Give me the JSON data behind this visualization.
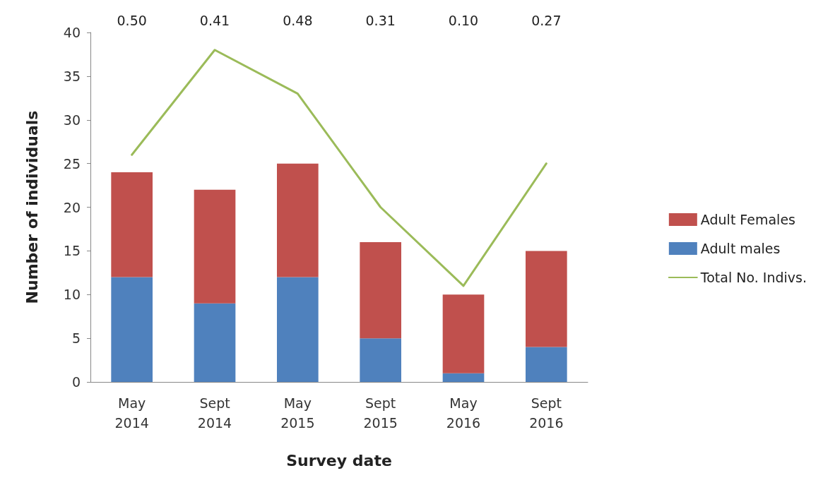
{
  "chart_data": {
    "type": "bar",
    "xlabel": "Survey date",
    "ylabel": "Number of individuals",
    "categories": [
      "May\n2014",
      "Sept\n2014",
      "May\n2015",
      "Sept\n2015",
      "May\n2016",
      "Sept\n2016"
    ],
    "stacked": true,
    "series": [
      {
        "name": "Adult males",
        "color": "#4f81bd",
        "values": [
          12,
          9,
          12,
          5,
          1,
          4
        ]
      },
      {
        "name": "Adult Females",
        "color": "#c0504d",
        "values": [
          12,
          13,
          13,
          11,
          9,
          11
        ]
      },
      {
        "name": "Total No. Indivs.",
        "type": "line",
        "color": "#9bbb59",
        "values": [
          26,
          38,
          33,
          20,
          11,
          25
        ]
      }
    ],
    "ylim": [
      0,
      40
    ],
    "yticks": [
      0,
      5,
      10,
      15,
      20,
      25,
      30,
      35,
      40
    ],
    "grid": false,
    "legend": "right",
    "marker": "none",
    "annotations": [
      "0.50",
      "0.41",
      "0.48",
      "0.31",
      "0.10",
      "0.27"
    ]
  }
}
